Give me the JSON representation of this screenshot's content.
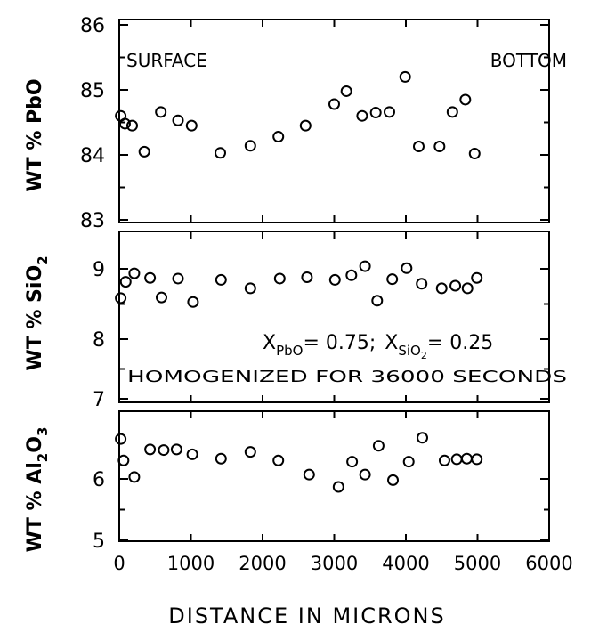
{
  "chart_data": [
    {
      "type": "scatter",
      "ylabel": "WT % PbO",
      "xlim": [
        0,
        6000
      ],
      "ylim": [
        83,
        86
      ],
      "yticks": [
        "83",
        "84",
        "85",
        "86"
      ],
      "annotations": [
        "SURFACE",
        "BOTTOM"
      ],
      "series": [
        {
          "marker": "open-circle",
          "x": [
            20,
            80,
            180,
            350,
            580,
            820,
            1010,
            1410,
            1830,
            2220,
            2600,
            3000,
            3170,
            3390,
            3580,
            3770,
            3990,
            4180,
            4470,
            4650,
            4830,
            4960
          ],
          "y": [
            84.6,
            84.48,
            84.45,
            84.05,
            84.66,
            84.53,
            84.45,
            84.03,
            84.14,
            84.28,
            84.45,
            84.78,
            84.98,
            84.6,
            84.65,
            84.66,
            85.2,
            84.13,
            84.13,
            84.66,
            84.85,
            84.02
          ]
        }
      ]
    },
    {
      "type": "scatter",
      "ylabel": "WT % SiO",
      "ylabel_sub": "2",
      "xlim": [
        0,
        6000
      ],
      "ylim": [
        7,
        9.6
      ],
      "yticks": [
        "7",
        "8",
        "9"
      ],
      "annotation_line1": {
        "x_a": "X",
        "sub_a": "PbO",
        "val_a": "= 0.75;",
        "x_b": "X",
        "sub_b": "SiO",
        "sub_b2": "2",
        "val_b": "= 0.25"
      },
      "annotation_line2": "HOMOGENIZED FOR 36000 SECONDS",
      "series": [
        {
          "marker": "open-circle",
          "x": [
            20,
            90,
            210,
            430,
            590,
            820,
            1030,
            1420,
            1830,
            2240,
            2620,
            3010,
            3240,
            3430,
            3600,
            3810,
            4010,
            4220,
            4500,
            4690,
            4860,
            4990
          ],
          "y": [
            8.55,
            8.8,
            8.93,
            8.86,
            8.56,
            8.85,
            8.49,
            8.83,
            8.7,
            8.85,
            8.87,
            8.83,
            8.9,
            9.04,
            8.51,
            8.84,
            9.01,
            8.77,
            8.7,
            8.74,
            8.7,
            8.86
          ]
        }
      ]
    },
    {
      "type": "scatter",
      "ylabel": "WT % Al",
      "ylabel_sub1": "2",
      "ylabel_mid": "O",
      "ylabel_sub2": "3",
      "xlim": [
        0,
        6000
      ],
      "ylim": [
        5,
        6.8
      ],
      "yticks": [
        "5",
        "6"
      ],
      "xticks": [
        "0",
        "1000",
        "2000",
        "3000",
        "4000",
        "5000",
        "6000"
      ],
      "xlabel": "DISTANCE IN MICRONS",
      "series": [
        {
          "marker": "open-circle",
          "x": [
            20,
            60,
            210,
            430,
            620,
            800,
            1020,
            1420,
            1830,
            2220,
            2650,
            3060,
            3250,
            3430,
            3620,
            3820,
            4040,
            4230,
            4540,
            4710,
            4850,
            4990
          ],
          "y": [
            6.65,
            6.3,
            6.03,
            6.48,
            6.47,
            6.48,
            6.4,
            6.33,
            6.44,
            6.3,
            6.07,
            5.87,
            6.28,
            6.07,
            6.54,
            5.98,
            6.28,
            6.67,
            6.3,
            6.32,
            6.33,
            6.32
          ]
        }
      ]
    }
  ]
}
